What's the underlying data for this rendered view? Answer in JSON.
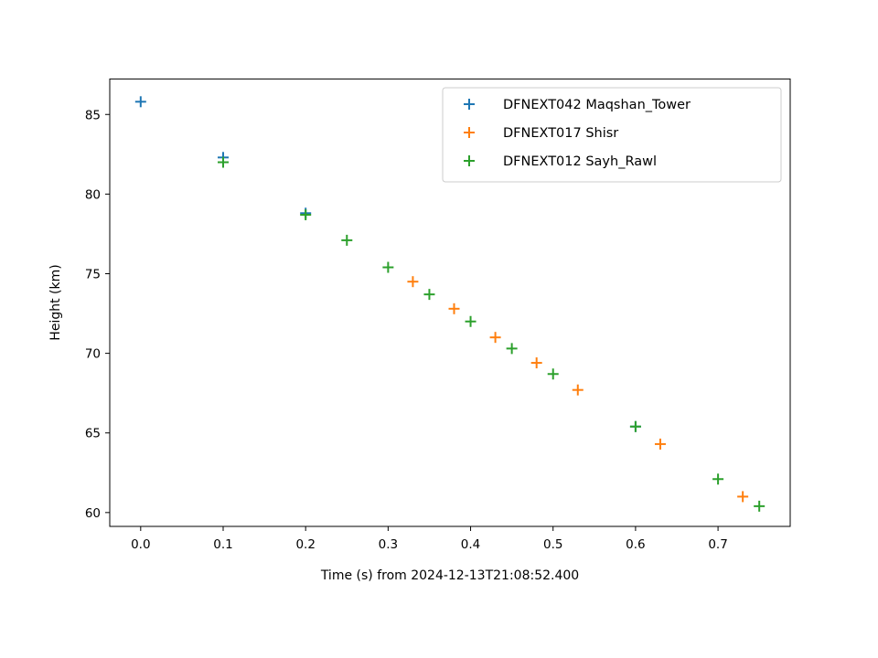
{
  "chart_data": {
    "type": "scatter",
    "title": "",
    "xlabel": "Time (s) from 2024-12-13T21:08:52.400",
    "ylabel": "Height (km)",
    "xlim": [
      -0.0375,
      0.7875
    ],
    "ylim": [
      59.13,
      87.23
    ],
    "xticks": [
      0.0,
      0.1,
      0.2,
      0.3,
      0.4,
      0.5,
      0.6,
      0.7
    ],
    "xtick_labels": [
      "0.0",
      "0.1",
      "0.2",
      "0.3",
      "0.4",
      "0.5",
      "0.6",
      "0.7"
    ],
    "yticks": [
      60,
      65,
      70,
      75,
      80,
      85
    ],
    "ytick_labels": [
      "60",
      "65",
      "70",
      "75",
      "80",
      "85"
    ],
    "marker": "+",
    "grid": false,
    "legend_position": "top-right",
    "series": [
      {
        "name": "DFNEXT042 Maqshan_Tower",
        "color": "#1f77b4",
        "x": [
          0.0,
          0.1,
          0.2,
          0.6
        ],
        "y": [
          85.8,
          82.3,
          78.8,
          65.4
        ]
      },
      {
        "name": "DFNEXT017 Shisr",
        "color": "#ff7f0e",
        "x": [
          0.33,
          0.38,
          0.43,
          0.48,
          0.53,
          0.63,
          0.73
        ],
        "y": [
          74.5,
          72.8,
          71.0,
          69.4,
          67.7,
          64.3,
          61.0
        ]
      },
      {
        "name": "DFNEXT012 Sayh_Rawl",
        "color": "#2ca02c",
        "x": [
          0.1,
          0.2,
          0.25,
          0.3,
          0.35,
          0.4,
          0.45,
          0.5,
          0.6,
          0.7,
          0.75
        ],
        "y": [
          82.0,
          78.7,
          77.1,
          75.4,
          73.7,
          72.0,
          70.3,
          68.7,
          65.4,
          62.1,
          60.4
        ]
      }
    ]
  }
}
